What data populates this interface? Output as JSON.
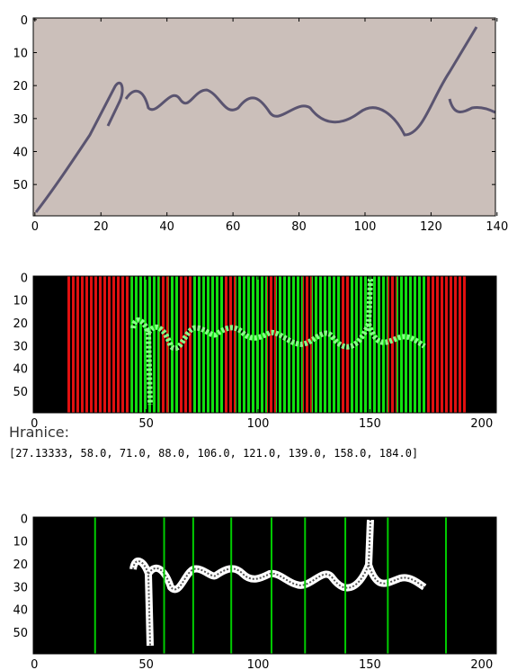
{
  "chart_data": [
    {
      "type": "image",
      "xlim": [
        -0.5,
        139.5
      ],
      "ylim": [
        59.5,
        -0.5
      ],
      "xticks": [
        0,
        20,
        40,
        60,
        80,
        100,
        120,
        140
      ],
      "yticks": [
        0,
        10,
        20,
        30,
        40,
        50
      ]
    },
    {
      "type": "image",
      "xlim": [
        -0.5,
        206.5
      ],
      "ylim": [
        59.5,
        -0.5
      ],
      "xticks": [
        0,
        50,
        100,
        150,
        200
      ],
      "yticks": [
        0,
        10,
        20,
        30,
        40,
        50
      ]
    },
    {
      "type": "image",
      "xlim": [
        -0.5,
        206.5
      ],
      "ylim": [
        59.5,
        -0.5
      ],
      "xticks": [
        0,
        50,
        100,
        150,
        200
      ],
      "yticks": [
        0,
        10,
        20,
        30,
        40,
        50
      ],
      "vlines": [
        27.13333,
        58.0,
        71.0,
        88.0,
        106.0,
        121.0,
        139.0,
        158.0,
        184.0
      ],
      "color": "#00cc00"
    }
  ],
  "output": {
    "label": "Hranice:",
    "text": "[27.13333, 58.0, 71.0, 88.0, 106.0, 121.0, 139.0, 158.0, 184.0]"
  }
}
